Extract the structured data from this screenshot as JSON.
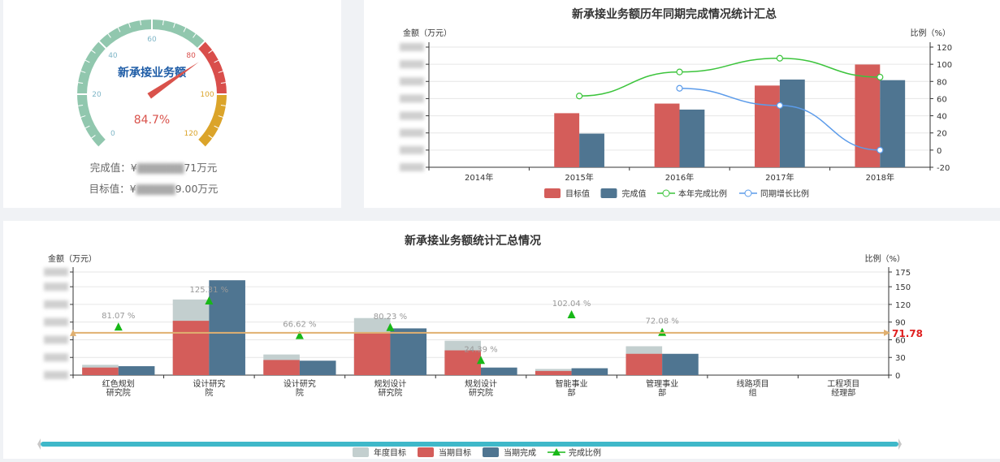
{
  "gauge": {
    "title": "新承接业务额",
    "value_text": "84.7%",
    "value": 84.7,
    "ticks": [
      "0",
      "20",
      "40",
      "60",
      "80",
      "100",
      "120"
    ],
    "completed_label": "完成值：¥",
    "completed_tail": "71万元",
    "target_label": "目标值：¥",
    "target_tail": "9.00万元",
    "colors": {
      "normal": "#91c7ae",
      "high": "#d94e4b",
      "over": "#dba42a",
      "pointer": "#d9524b"
    }
  },
  "chart_data": [
    {
      "type": "bar",
      "title": "新承接业务额历年同期完成情况统计汇总",
      "ylabel": "金额（万元）",
      "y2label": "比例（%）",
      "categories": [
        "2014年",
        "2015年",
        "2016年",
        "2017年",
        "2018年"
      ],
      "ylim": [
        0,
        400
      ],
      "y2lim": [
        -20,
        120
      ],
      "y2_ticks": [
        "120",
        "100",
        "80",
        "60",
        "40",
        "20",
        "0",
        "-20"
      ],
      "series": [
        {
          "name": "目标值",
          "kind": "bar",
          "color": "#d45d5a",
          "values": [
            0,
            180,
            212,
            272,
            342
          ]
        },
        {
          "name": "完成值",
          "kind": "bar",
          "color": "#4f7591",
          "values": [
            0,
            112,
            192,
            292,
            290
          ]
        },
        {
          "name": "本年完成比例",
          "kind": "line",
          "color": "#3cc43c",
          "values": [
            null,
            63,
            91,
            107,
            85
          ]
        },
        {
          "name": "同期增长比例",
          "kind": "line",
          "color": "#5b9bea",
          "values": [
            null,
            null,
            72,
            52,
            0
          ]
        }
      ]
    },
    {
      "type": "bar",
      "title": "新承接业务额统计汇总情况",
      "ylabel": "金额（万元）",
      "y2label": "比例（%）",
      "categories": [
        "红色规划研究院",
        "设计研究院",
        "设计研究院",
        "规划设计研究院",
        "规划设计研究院",
        "智能事业部",
        "管理事业部",
        "线路项目组",
        "工程项目经理部"
      ],
      "ylim": [
        0,
        150
      ],
      "y2lim": [
        0,
        175
      ],
      "y2_ticks": [
        "175",
        "150",
        "120",
        "90",
        "60",
        "30",
        "0"
      ],
      "markline_value": "71.78",
      "series": [
        {
          "name": "年度目标",
          "kind": "bar",
          "color": "#c3cfcf",
          "values": [
            15,
            110,
            30,
            83,
            50,
            9,
            42,
            0,
            0
          ]
        },
        {
          "name": "当期目标",
          "kind": "bar",
          "color": "#d45d5a",
          "values": [
            11,
            79,
            22,
            62,
            36,
            6,
            31,
            0,
            0
          ]
        },
        {
          "name": "当期完成",
          "kind": "bar",
          "color": "#4f7591",
          "values": [
            13,
            138,
            21,
            68,
            11,
            10,
            31,
            0,
            0
          ]
        },
        {
          "name": "完成比例",
          "kind": "triangle",
          "color": "#18b818",
          "values": [
            81.07,
            125.31,
            66.62,
            80.23,
            24.39,
            102.04,
            72.08,
            null,
            null
          ],
          "labels": [
            "81.07 %",
            "125.31 %",
            "66.62 %",
            "80.23 %",
            "24.39 %",
            "102.04 %",
            "72.08 %",
            "",
            ""
          ]
        }
      ]
    }
  ]
}
